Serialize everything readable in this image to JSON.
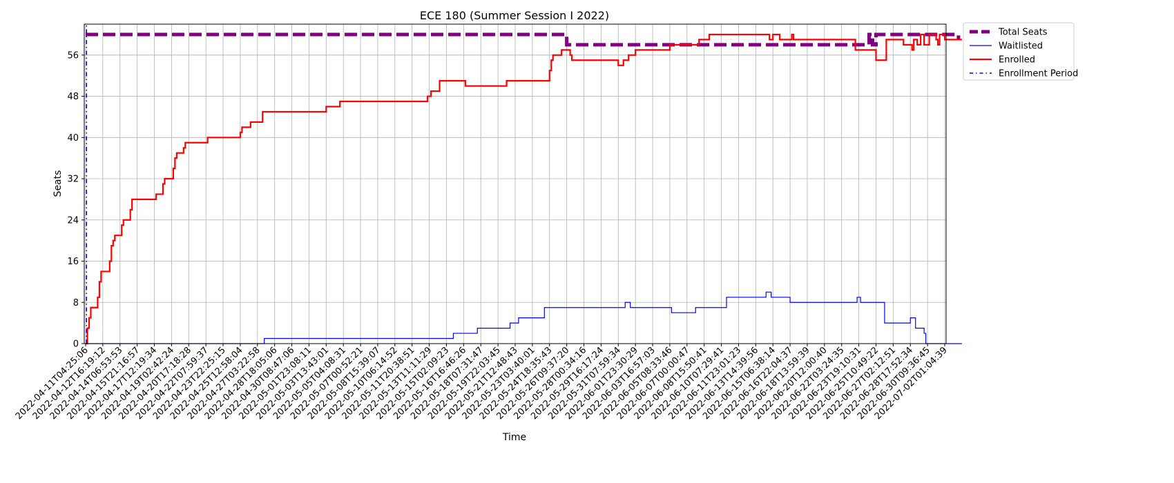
{
  "chart_data": {
    "type": "line",
    "title": "ECE 180 (Summer Session I 2022)",
    "xlabel": "Time",
    "ylabel": "Seats",
    "ylim": [
      0,
      62
    ],
    "yticks": [
      0,
      8,
      16,
      24,
      32,
      40,
      48,
      56
    ],
    "grid": true,
    "legend_position": "outside-top-right",
    "x_tick_labels": [
      "2022-04-11T04:25:06",
      "2022-04-12T16:19:12",
      "2022-04-14T06:53:53",
      "2022-04-15T21:16:57",
      "2022-04-17T12:19:34",
      "2022-04-19T02:42:24",
      "2022-04-20T17:18:28",
      "2022-04-22T07:59:37",
      "2022-04-23T22:25:15",
      "2022-04-25T12:58:04",
      "2022-04-27T03:22:58",
      "2022-04-28T18:05:06",
      "2022-04-30T08:47:06",
      "2022-05-01T23:08:11",
      "2022-05-03T13:43:01",
      "2022-05-05T04:08:31",
      "2022-05-07T00:52:21",
      "2022-05-08T15:39:07",
      "2022-05-10T06:14:52",
      "2022-05-11T20:38:51",
      "2022-05-13T11:11:29",
      "2022-05-15T02:09:23",
      "2022-05-16T16:46:26",
      "2022-05-18T07:31:47",
      "2022-05-19T22:03:45",
      "2022-05-21T12:48:43",
      "2022-05-23T03:40:01",
      "2022-05-24T18:35:43",
      "2022-05-26T09:37:20",
      "2022-05-28T00:34:16",
      "2022-05-29T16:17:24",
      "2022-05-31T07:59:34",
      "2022-06-01T23:30:29",
      "2022-06-03T16:57:03",
      "2022-06-05T08:33:46",
      "2022-06-07T00:00:47",
      "2022-06-08T15:50:41",
      "2022-06-10T07:29:41",
      "2022-06-11T23:01:23",
      "2022-06-13T14:39:56",
      "2022-06-15T06:38:14",
      "2022-06-16T22:04:37",
      "2022-06-18T13:59:39",
      "2022-06-20T12:00:40",
      "2022-06-22T03:24:35",
      "2022-06-23T19:10:31",
      "2022-06-25T10:49:22",
      "2022-06-27T02:12:51",
      "2022-06-28T17:52:34",
      "2022-06-30T09:36:45",
      "2022-07-02T01:04:39"
    ],
    "series": [
      {
        "name": "Total Seats",
        "color": "#800080",
        "style": "thick-dashed",
        "points": [
          [
            0,
            60
          ],
          [
            28,
            60
          ],
          [
            28,
            58
          ],
          [
            45.6,
            58
          ],
          [
            45.6,
            60
          ],
          [
            45.8,
            60
          ],
          [
            45.8,
            58
          ],
          [
            46,
            58
          ],
          [
            46,
            60
          ],
          [
            50.8,
            60
          ],
          [
            50.8,
            59
          ]
        ]
      },
      {
        "name": "Waitlisted",
        "color": "#0000ff",
        "style": "thin-step",
        "points": [
          [
            0,
            0
          ],
          [
            10.4,
            0
          ],
          [
            10.4,
            1
          ],
          [
            21.4,
            1
          ],
          [
            21.4,
            2
          ],
          [
            22.8,
            2
          ],
          [
            22.8,
            3
          ],
          [
            24.7,
            3
          ],
          [
            24.7,
            4
          ],
          [
            25.2,
            4
          ],
          [
            25.2,
            5
          ],
          [
            26.7,
            5
          ],
          [
            26.7,
            7
          ],
          [
            31.4,
            7
          ],
          [
            31.4,
            8
          ],
          [
            31.7,
            8
          ],
          [
            31.7,
            7
          ],
          [
            34.1,
            7
          ],
          [
            34.1,
            6
          ],
          [
            35.5,
            6
          ],
          [
            35.5,
            7
          ],
          [
            37.3,
            7
          ],
          [
            37.3,
            9
          ],
          [
            39.6,
            9
          ],
          [
            39.6,
            10
          ],
          [
            39.9,
            10
          ],
          [
            39.9,
            9
          ],
          [
            41,
            9
          ],
          [
            41,
            8
          ],
          [
            44.9,
            8
          ],
          [
            44.9,
            9
          ],
          [
            45.1,
            9
          ],
          [
            45.1,
            8
          ],
          [
            46.5,
            8
          ],
          [
            46.5,
            4
          ],
          [
            48,
            4
          ],
          [
            48,
            5
          ],
          [
            48.3,
            5
          ],
          [
            48.3,
            3
          ],
          [
            48.8,
            3
          ],
          [
            48.8,
            2
          ],
          [
            48.9,
            2
          ],
          [
            48.9,
            0
          ],
          [
            51,
            0
          ]
        ]
      },
      {
        "name": "Enrolled",
        "color": "#ff0000",
        "style": "step",
        "points": [
          [
            0,
            0
          ],
          [
            0.1,
            0
          ],
          [
            0.1,
            3
          ],
          [
            0.2,
            3
          ],
          [
            0.2,
            5
          ],
          [
            0.3,
            5
          ],
          [
            0.3,
            7
          ],
          [
            0.7,
            7
          ],
          [
            0.7,
            9
          ],
          [
            0.8,
            9
          ],
          [
            0.8,
            12
          ],
          [
            0.9,
            12
          ],
          [
            0.9,
            14
          ],
          [
            1.4,
            14
          ],
          [
            1.4,
            16
          ],
          [
            1.5,
            16
          ],
          [
            1.5,
            19
          ],
          [
            1.6,
            19
          ],
          [
            1.6,
            20
          ],
          [
            1.7,
            20
          ],
          [
            1.7,
            21
          ],
          [
            2.1,
            21
          ],
          [
            2.1,
            23
          ],
          [
            2.2,
            23
          ],
          [
            2.2,
            24
          ],
          [
            2.6,
            24
          ],
          [
            2.6,
            26
          ],
          [
            2.7,
            26
          ],
          [
            2.7,
            28
          ],
          [
            4.1,
            28
          ],
          [
            4.1,
            29
          ],
          [
            4.5,
            29
          ],
          [
            4.5,
            31
          ],
          [
            4.6,
            31
          ],
          [
            4.6,
            32
          ],
          [
            5.1,
            32
          ],
          [
            5.1,
            34
          ],
          [
            5.2,
            34
          ],
          [
            5.2,
            36
          ],
          [
            5.3,
            36
          ],
          [
            5.3,
            37
          ],
          [
            5.7,
            37
          ],
          [
            5.7,
            38
          ],
          [
            5.8,
            38
          ],
          [
            5.8,
            39
          ],
          [
            7.1,
            39
          ],
          [
            7.1,
            40
          ],
          [
            9,
            40
          ],
          [
            9,
            41
          ],
          [
            9.1,
            41
          ],
          [
            9.1,
            42
          ],
          [
            9.6,
            42
          ],
          [
            9.6,
            43
          ],
          [
            10.3,
            43
          ],
          [
            10.3,
            45
          ],
          [
            14,
            45
          ],
          [
            14,
            46
          ],
          [
            14.8,
            46
          ],
          [
            14.8,
            47
          ],
          [
            19.9,
            47
          ],
          [
            19.9,
            48
          ],
          [
            20.1,
            48
          ],
          [
            20.1,
            49
          ],
          [
            20.6,
            49
          ],
          [
            20.6,
            51
          ],
          [
            22.1,
            51
          ],
          [
            22.1,
            50
          ],
          [
            24.5,
            50
          ],
          [
            24.5,
            51
          ],
          [
            27,
            51
          ],
          [
            27,
            53
          ],
          [
            27.1,
            53
          ],
          [
            27.1,
            55
          ],
          [
            27.2,
            55
          ],
          [
            27.2,
            56
          ],
          [
            27.7,
            56
          ],
          [
            27.7,
            57
          ],
          [
            28.2,
            57
          ],
          [
            28.2,
            56
          ],
          [
            28.3,
            56
          ],
          [
            28.3,
            55
          ],
          [
            31,
            55
          ],
          [
            31,
            54
          ],
          [
            31.3,
            54
          ],
          [
            31.3,
            55
          ],
          [
            31.6,
            55
          ],
          [
            31.6,
            56
          ],
          [
            32,
            56
          ],
          [
            32,
            57
          ],
          [
            34,
            57
          ],
          [
            34,
            58
          ],
          [
            35.7,
            58
          ],
          [
            35.7,
            59
          ],
          [
            36.3,
            59
          ],
          [
            36.3,
            60
          ],
          [
            39.8,
            60
          ],
          [
            39.8,
            59
          ],
          [
            40,
            59
          ],
          [
            40,
            60
          ],
          [
            40.4,
            60
          ],
          [
            40.4,
            59
          ],
          [
            41.1,
            59
          ],
          [
            41.1,
            60
          ],
          [
            41.2,
            60
          ],
          [
            41.2,
            59
          ],
          [
            44.8,
            59
          ],
          [
            44.8,
            57
          ],
          [
            46,
            57
          ],
          [
            46,
            55
          ],
          [
            46.6,
            55
          ],
          [
            46.6,
            59
          ],
          [
            47.6,
            59
          ],
          [
            47.6,
            58
          ],
          [
            48.1,
            58
          ],
          [
            48.1,
            57
          ],
          [
            48.2,
            57
          ],
          [
            48.2,
            59
          ],
          [
            48.4,
            59
          ],
          [
            48.4,
            58
          ],
          [
            48.6,
            58
          ],
          [
            48.6,
            60
          ],
          [
            48.8,
            60
          ],
          [
            48.8,
            58
          ],
          [
            49.1,
            58
          ],
          [
            49.1,
            60
          ],
          [
            49.5,
            60
          ],
          [
            49.5,
            59
          ],
          [
            49.6,
            59
          ],
          [
            49.6,
            58
          ],
          [
            49.7,
            58
          ],
          [
            49.7,
            60
          ],
          [
            50,
            60
          ],
          [
            50,
            59
          ],
          [
            51,
            59
          ]
        ]
      },
      {
        "name": "Enrollment Period",
        "color": "#0000ff",
        "style": "dash-dot",
        "points": [
          [
            0.05,
            0
          ],
          [
            0.05,
            62
          ]
        ]
      }
    ]
  }
}
